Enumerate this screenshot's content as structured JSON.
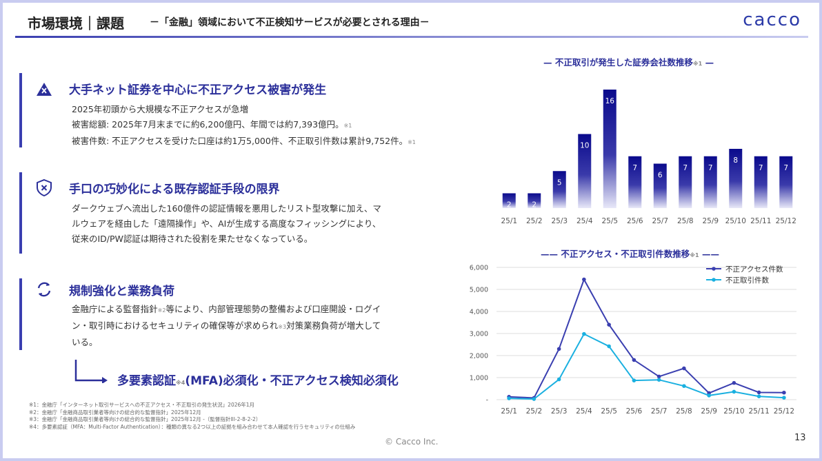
{
  "header": {
    "title": "市場環境｜課題",
    "subtitle": "－「金融」領域において不正検知サービスが必要とされる理由－",
    "logo": "cacco"
  },
  "sections": [
    {
      "title": "大手ネット証券を中心に不正アクセス被害が発生",
      "icon": "alert-triangle-icon",
      "lines": [
        {
          "text": "2025年初頭から大規模な不正アクセスが急増",
          "note": ""
        },
        {
          "text": "被害総額: 2025年7月末までに約6,200億円、年間では約7,393億円。",
          "note": "※1"
        },
        {
          "text": "被害件数: 不正アクセスを受けた口座は約1万5,000件、不正取引件数は累計9,752件。",
          "note": "※1"
        }
      ]
    },
    {
      "title": "手口の巧妙化による既存認証手段の限界",
      "icon": "shield-x-icon",
      "lines": [
        {
          "text": "ダークウェブへ流出した160億件の認証情報を悪用したリスト型攻撃に加え、マ",
          "note": ""
        },
        {
          "text": "ルウェアを経由した「遠隔操作」や、AIが生成する高度なフィッシングにより、",
          "note": ""
        },
        {
          "text": "従来のID/PW認証は期待された役割を果たせなくなっている。",
          "note": ""
        }
      ]
    },
    {
      "title": "規制強化と業務負荷",
      "icon": "refresh-icon",
      "lines": [
        {
          "text": "金融庁による監督指針",
          "note": "※2",
          "text2": "等により、内部管理態勢の整備および口座開設・ログイ"
        },
        {
          "text": "ン・取引時におけるセキュリティの確保等が求められ",
          "note": "※3",
          "text2": "対策業務負荷が増大して"
        },
        {
          "text": "いる。",
          "note": ""
        }
      ]
    }
  ],
  "emphasis": {
    "text1": "多要素認証",
    "note": "※4",
    "text2": "(MFA)必須化・不正アクセス検知必須化"
  },
  "footnotes": [
    "※1：金融庁「インターネット取引サービスへの不正アクセス・不正取引の発生状況」2026年1月",
    "※2：金融庁「金融商品取引業者等向けの総合的な監督指針」2025年12月",
    "※3：金融庁「金融商品取引業者等向けの総合的な監督指針」2025年12月 -（監督指針III-2-8-2-2）",
    "※4：多要素認証（MFA：Multi-Factor Authentication）：種類の異なる2つ以上の証拠を組み合わせて本人確認を行うセキュリティの仕組み"
  ],
  "copyright": "© Cacco Inc.",
  "page_number": "13",
  "chart_data": [
    {
      "type": "bar",
      "title": "不正取引が発生した証券会社数推移",
      "title_note": "※1",
      "categories": [
        "25/1",
        "25/2",
        "25/3",
        "25/4",
        "25/5",
        "25/6",
        "25/7",
        "25/8",
        "25/9",
        "25/10",
        "25/11",
        "25/12"
      ],
      "values": [
        2,
        2,
        5,
        10,
        16,
        7,
        6,
        7,
        7,
        8,
        7,
        7
      ],
      "ylim": [
        0,
        16
      ],
      "colors": {
        "top": "#0a0a8c",
        "bottom": "#e8e8f8"
      }
    },
    {
      "type": "line",
      "title": "不正アクセス・不正取引件数推移",
      "title_note": "※1",
      "categories": [
        "25/1",
        "25/2",
        "25/3",
        "25/4",
        "25/5",
        "25/6",
        "25/7",
        "25/8",
        "25/9",
        "25/10",
        "25/11",
        "25/12"
      ],
      "yticks": [
        "-",
        "1,000",
        "2,000",
        "3,000",
        "4,000",
        "5,000",
        "6,000"
      ],
      "ylim": [
        0,
        6000
      ],
      "legend": "top-right",
      "series": [
        {
          "name": "不正アクセス件数",
          "color": "#3a3fb0",
          "values": [
            130,
            80,
            2300,
            5450,
            3400,
            1800,
            1050,
            1420,
            300,
            760,
            330,
            320
          ]
        },
        {
          "name": "不正取引件数",
          "color": "#1ab0e0",
          "values": [
            60,
            30,
            920,
            2980,
            2420,
            870,
            900,
            620,
            190,
            360,
            150,
            90
          ]
        }
      ]
    }
  ]
}
